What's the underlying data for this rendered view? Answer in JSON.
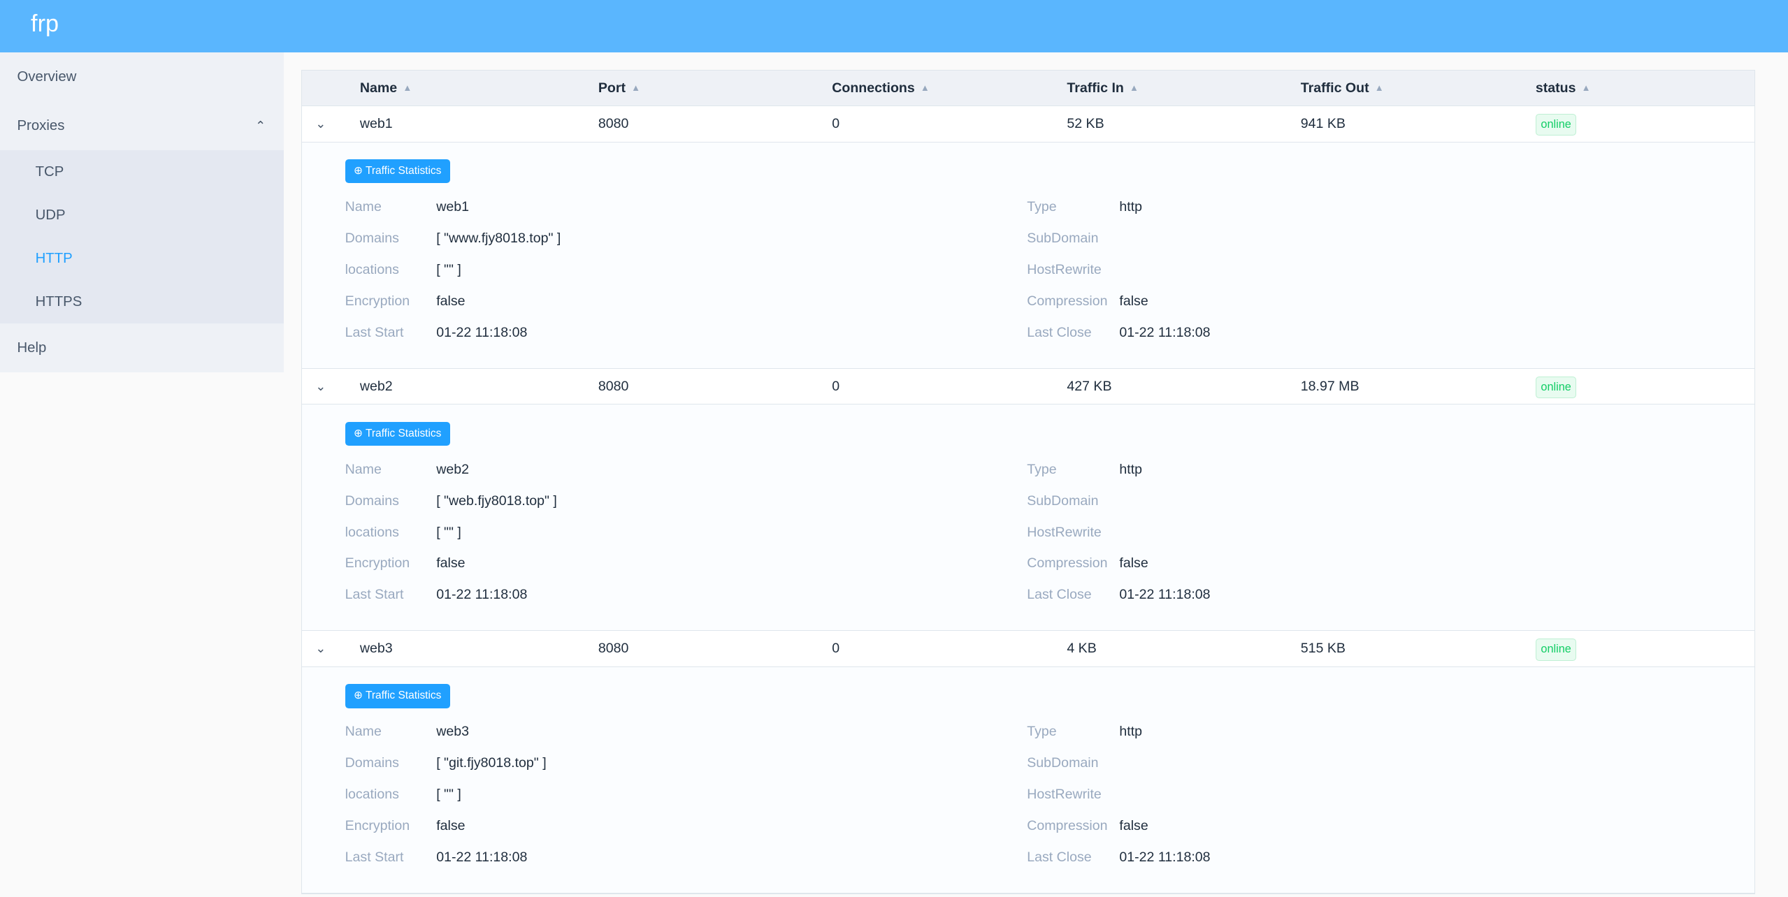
{
  "app": {
    "title": "frp"
  },
  "sidebar": {
    "items": [
      {
        "label": "Overview"
      },
      {
        "label": "Proxies"
      },
      {
        "label": "Help"
      }
    ],
    "proxies_sub": [
      {
        "label": "TCP"
      },
      {
        "label": "UDP"
      },
      {
        "label": "HTTP",
        "active": true
      },
      {
        "label": "HTTPS"
      }
    ]
  },
  "table": {
    "columns": [
      "Name",
      "Port",
      "Connections",
      "Traffic In",
      "Traffic Out",
      "status"
    ],
    "detail_labels": {
      "name": "Name",
      "domains": "Domains",
      "locations": "locations",
      "encryption": "Encryption",
      "last_start": "Last Start",
      "type": "Type",
      "subdomain": "SubDomain",
      "hostrewrite": "HostRewrite",
      "compression": "Compression",
      "last_close": "Last Close"
    },
    "button_label": "Traffic Statistics",
    "rows": [
      {
        "name": "web1",
        "port": "8080",
        "connections": "0",
        "traffic_in": "52 KB",
        "traffic_out": "941 KB",
        "status": "online",
        "domains": "[ \"www.fjy8018.top\" ]",
        "locations": "[ \"\" ]",
        "encryption": "false",
        "last_start": "01-22 11:18:08",
        "type": "http",
        "subdomain": "",
        "hostrewrite": "",
        "compression": "false",
        "last_close": "01-22 11:18:08"
      },
      {
        "name": "web2",
        "port": "8080",
        "connections": "0",
        "traffic_in": "427 KB",
        "traffic_out": "18.97 MB",
        "status": "online",
        "domains": "[ \"web.fjy8018.top\" ]",
        "locations": "[ \"\" ]",
        "encryption": "false",
        "last_start": "01-22 11:18:08",
        "type": "http",
        "subdomain": "",
        "hostrewrite": "",
        "compression": "false",
        "last_close": "01-22 11:18:08"
      },
      {
        "name": "web3",
        "port": "8080",
        "connections": "0",
        "traffic_in": "4 KB",
        "traffic_out": "515 KB",
        "status": "online",
        "domains": "[ \"git.fjy8018.top\" ]",
        "locations": "[ \"\" ]",
        "encryption": "false",
        "last_start": "01-22 11:18:08",
        "type": "http",
        "subdomain": "",
        "hostrewrite": "",
        "compression": "false",
        "last_close": "01-22 11:18:08"
      }
    ]
  },
  "colors": {
    "header": "#5ab6fe",
    "accent": "#20a0ff",
    "online": "#13ce66"
  }
}
